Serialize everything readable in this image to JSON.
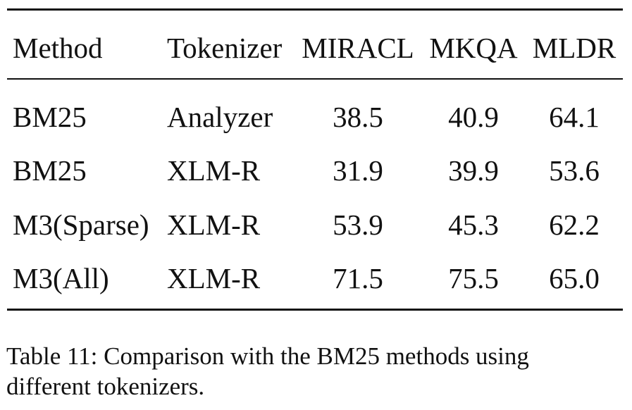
{
  "table": {
    "headers": [
      "Method",
      "Tokenizer",
      "MIRACL",
      "MKQA",
      "MLDR"
    ],
    "rows": [
      [
        "BM25",
        "Analyzer",
        "38.5",
        "40.9",
        "64.1"
      ],
      [
        "BM25",
        "XLM-R",
        "31.9",
        "39.9",
        "53.6"
      ],
      [
        "M3(Sparse)",
        "XLM-R",
        "53.9",
        "45.3",
        "62.2"
      ],
      [
        "M3(All)",
        "XLM-R",
        "71.5",
        "75.5",
        "65.0"
      ]
    ]
  },
  "caption": {
    "line1": "Table 11: Comparison with the BM25 methods using",
    "line2": "different tokenizers."
  }
}
